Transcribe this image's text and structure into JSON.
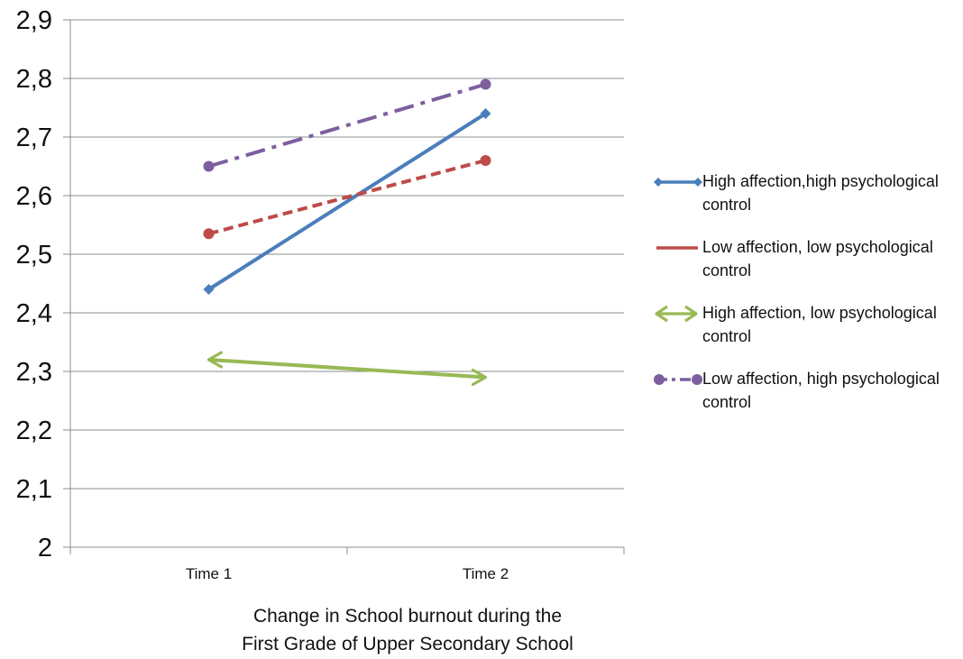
{
  "chart_data": {
    "type": "line",
    "categories": [
      "Time 1",
      "Time 2"
    ],
    "xlabel": [
      "Change in School burnout during the",
      "First Grade of Upper Secondary School"
    ],
    "ylabel": "",
    "ylim": [
      2.0,
      2.9
    ],
    "yticks": [
      "2",
      "2,1",
      "2,2",
      "2,3",
      "2,4",
      "2,5",
      "2,6",
      "2,7",
      "2,8",
      "2,9"
    ],
    "grid": "horizontal",
    "legend_position": "right",
    "series": [
      {
        "name": "High affection,high psychological control",
        "values": [
          2.44,
          2.74
        ],
        "color": "#4a7ebb",
        "dash": "solid",
        "marker": "diamond"
      },
      {
        "name": "Low affection, low psychological control",
        "values": [
          2.535,
          2.66
        ],
        "color": "#be4b48",
        "dash": "dashed",
        "marker": "circle"
      },
      {
        "name": "High affection, low psychological control",
        "values": [
          2.32,
          2.29
        ],
        "color": "#98b954",
        "dash": "solid",
        "marker": "arrow"
      },
      {
        "name": "Low affection, high psychological control",
        "values": [
          2.65,
          2.79
        ],
        "color": "#7d5fa0",
        "dash": "dashdot",
        "marker": "circle"
      }
    ]
  }
}
